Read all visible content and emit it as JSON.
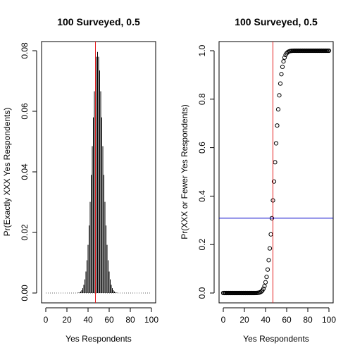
{
  "chart_data": [
    {
      "type": "bar",
      "title": "100 Surveyed, 0.5",
      "xlabel": "Yes Respondents",
      "ylabel": "Pr(Exactly XXX Yes Respondents)",
      "xlim": [
        0,
        100
      ],
      "ylim": [
        0,
        0.08
      ],
      "x_ticks": [
        "0",
        "20",
        "40",
        "60",
        "80",
        "100"
      ],
      "y_ticks": [
        "0.00",
        "0.02",
        "0.04",
        "0.06",
        "0.08"
      ],
      "x": [
        0,
        1,
        2,
        3,
        4,
        5,
        6,
        7,
        8,
        9,
        10,
        11,
        12,
        13,
        14,
        15,
        16,
        17,
        18,
        19,
        20,
        21,
        22,
        23,
        24,
        25,
        26,
        27,
        28,
        29,
        30,
        31,
        32,
        33,
        34,
        35,
        36,
        37,
        38,
        39,
        40,
        41,
        42,
        43,
        44,
        45,
        46,
        47,
        48,
        49,
        50,
        51,
        52,
        53,
        54,
        55,
        56,
        57,
        58,
        59,
        60,
        61,
        62,
        63,
        64,
        65,
        66,
        67,
        68,
        69,
        70,
        71,
        72,
        73,
        74,
        75,
        76,
        77,
        78,
        79,
        80,
        81,
        82,
        83,
        84,
        85,
        86,
        87,
        88,
        89,
        90,
        91,
        92,
        93,
        94,
        95,
        96,
        97,
        98,
        99,
        100
      ],
      "values": [
        0,
        0,
        0,
        0,
        0,
        0,
        0,
        0,
        0,
        0,
        0,
        0,
        0,
        0,
        0,
        0,
        0,
        0,
        0,
        0,
        0,
        0,
        0,
        0,
        0,
        0,
        0,
        0,
        0,
        0,
        0.0001,
        0.0001,
        0.0002,
        0.0005,
        0.0009,
        0.0016,
        0.0027,
        0.0045,
        0.0071,
        0.0108,
        0.0159,
        0.0223,
        0.0301,
        0.039,
        0.0485,
        0.058,
        0.0666,
        0.0735,
        0.078,
        0.0796,
        0.078,
        0.0735,
        0.0666,
        0.058,
        0.0485,
        0.039,
        0.0301,
        0.0223,
        0.0159,
        0.0108,
        0.0071,
        0.0045,
        0.0027,
        0.0016,
        0.0009,
        0.0005,
        0.0002,
        0.0001,
        0.0001,
        0,
        0,
        0,
        0,
        0,
        0,
        0,
        0,
        0,
        0,
        0,
        0,
        0,
        0,
        0,
        0,
        0,
        0,
        0,
        0,
        0,
        0,
        0,
        0,
        0,
        0,
        0,
        0,
        0,
        0,
        0,
        0
      ],
      "vline": 47,
      "vline_color": "#e41a1c"
    },
    {
      "type": "scatter",
      "title": "100 Surveyed, 0.5",
      "xlabel": "Yes Respondents",
      "ylabel": "Pr(XXX or Fewer Yes Respondents)",
      "xlim": [
        0,
        100
      ],
      "ylim": [
        0,
        1
      ],
      "x_ticks": [
        "0",
        "20",
        "40",
        "60",
        "80",
        "100"
      ],
      "y_ticks": [
        "0.0",
        "0.2",
        "0.4",
        "0.6",
        "0.8",
        "1.0"
      ],
      "x": [
        0,
        1,
        2,
        3,
        4,
        5,
        6,
        7,
        8,
        9,
        10,
        11,
        12,
        13,
        14,
        15,
        16,
        17,
        18,
        19,
        20,
        21,
        22,
        23,
        24,
        25,
        26,
        27,
        28,
        29,
        30,
        31,
        32,
        33,
        34,
        35,
        36,
        37,
        38,
        39,
        40,
        41,
        42,
        43,
        44,
        45,
        46,
        47,
        48,
        49,
        50,
        51,
        52,
        53,
        54,
        55,
        56,
        57,
        58,
        59,
        60,
        61,
        62,
        63,
        64,
        65,
        66,
        67,
        68,
        69,
        70,
        71,
        72,
        73,
        74,
        75,
        76,
        77,
        78,
        79,
        80,
        81,
        82,
        83,
        84,
        85,
        86,
        87,
        88,
        89,
        90,
        91,
        92,
        93,
        94,
        95,
        96,
        97,
        98,
        99,
        100
      ],
      "values": [
        0,
        0,
        0,
        0,
        0,
        0,
        0,
        0,
        0,
        0,
        0,
        0,
        0,
        0,
        0,
        0,
        0,
        0,
        0,
        0,
        0,
        0,
        0,
        0,
        0,
        0,
        0,
        0,
        0,
        0,
        0.0001,
        0.0002,
        0.0004,
        0.0009,
        0.0018,
        0.0035,
        0.006,
        0.0105,
        0.0176,
        0.0284,
        0.0443,
        0.0666,
        0.0967,
        0.1356,
        0.1841,
        0.2421,
        0.3087,
        0.3822,
        0.4602,
        0.5398,
        0.6178,
        0.6913,
        0.7579,
        0.8159,
        0.8644,
        0.9033,
        0.9334,
        0.9557,
        0.9716,
        0.9824,
        0.9895,
        0.994,
        0.9965,
        0.9982,
        0.9991,
        0.9996,
        0.9998,
        0.9999,
        1,
        1,
        1,
        1,
        1,
        1,
        1,
        1,
        1,
        1,
        1,
        1,
        1,
        1,
        1,
        1,
        1,
        1,
        1,
        1,
        1,
        1,
        1,
        1,
        1,
        1,
        1,
        1,
        1,
        1,
        1,
        1,
        1
      ],
      "vline": 47,
      "vline_color": "#e41a1c",
      "hline": 0.3087,
      "hline_color": "#0000cc"
    }
  ]
}
